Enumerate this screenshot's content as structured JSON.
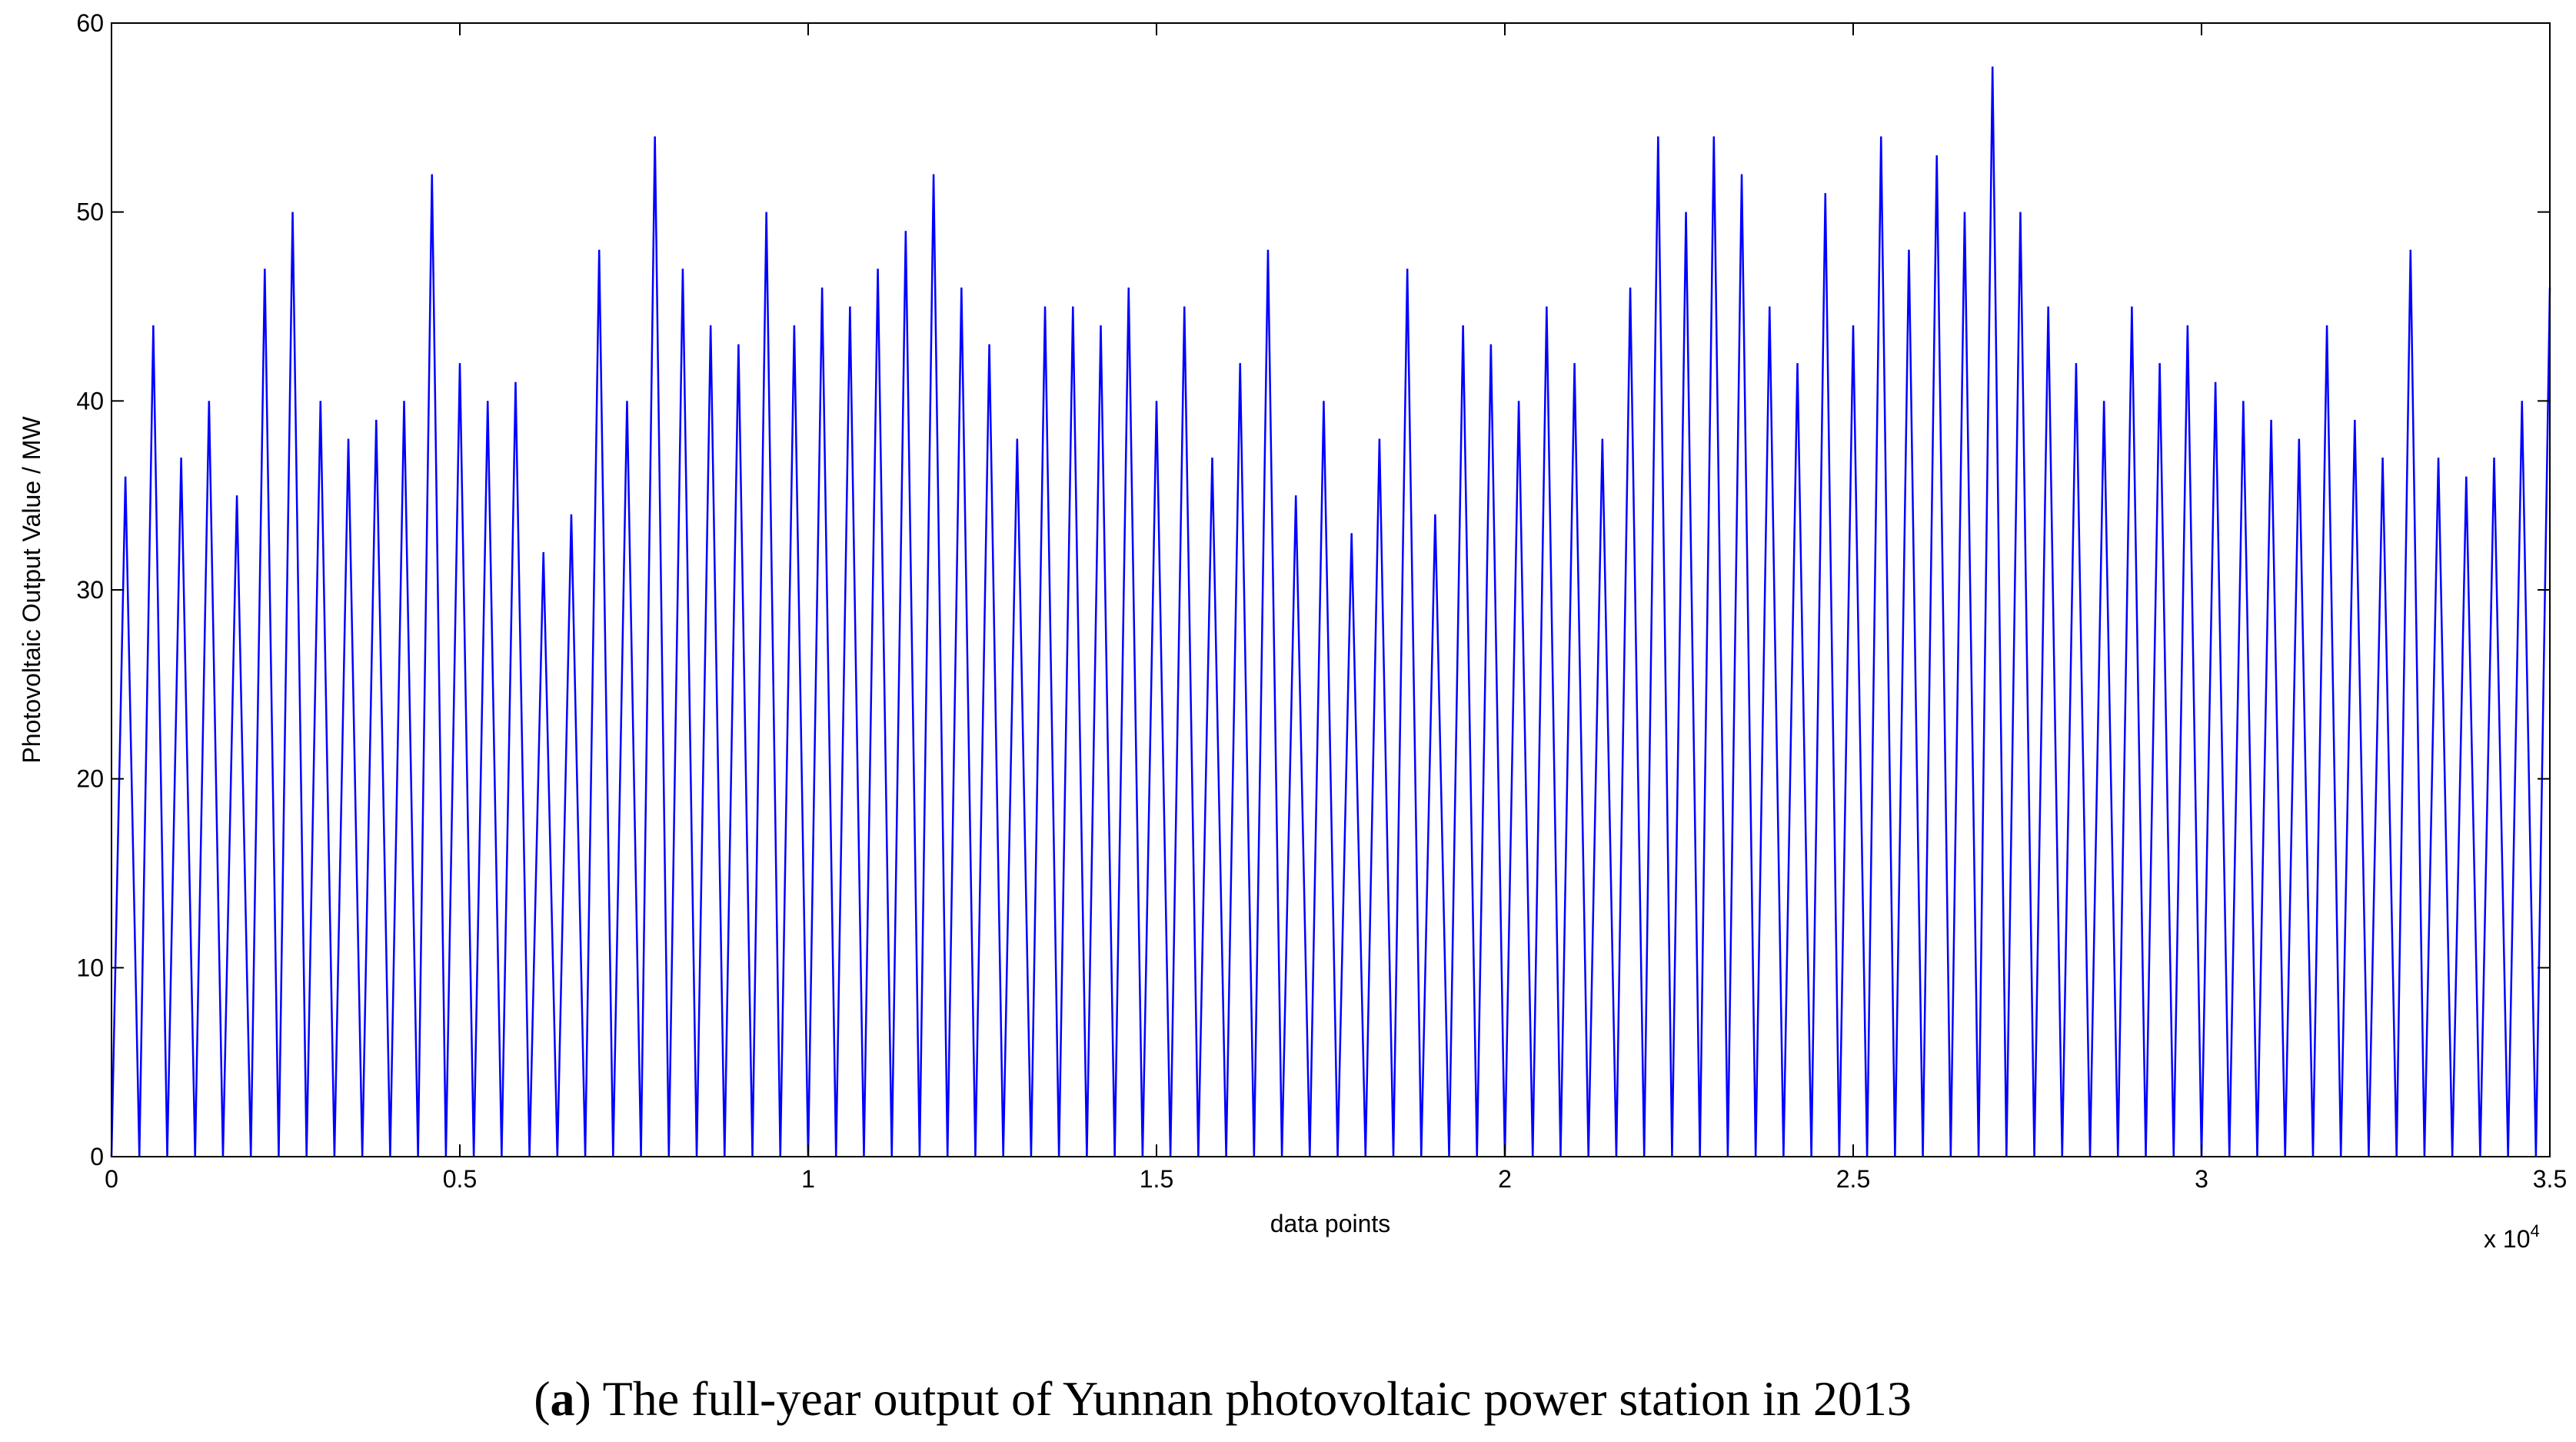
{
  "chart_data": {
    "type": "line",
    "x_label": "data points",
    "y_label": "Photovoltaic Output Value / MW",
    "x_scale_label": {
      "base": "x 10",
      "exponent": "4"
    },
    "caption": {
      "open": "(",
      "label": "a",
      "text": ") The full-year output of Yunnan photovoltaic power station in 2013"
    },
    "color": "#0000ff",
    "xlim": [
      0,
      35000
    ],
    "ylim": [
      0,
      60
    ],
    "xticks": [
      0,
      {
        "value": 5000,
        "label": "0.5"
      },
      {
        "value": 10000,
        "label": "1"
      },
      {
        "value": 15000,
        "label": "1.5"
      },
      {
        "value": 20000,
        "label": "2"
      },
      {
        "value": 25000,
        "label": "2.5"
      },
      {
        "value": 30000,
        "label": "3"
      },
      {
        "value": 35000,
        "label": "3.5"
      }
    ],
    "yticks": [
      0,
      10,
      20,
      30,
      40,
      50,
      60
    ],
    "x": [
      0,
      200,
      400,
      600,
      800,
      1000,
      1200,
      1400,
      1600,
      1800,
      2000,
      2200,
      2400,
      2600,
      2800,
      3000,
      3200,
      3400,
      3600,
      3800,
      4000,
      4200,
      4400,
      4600,
      4800,
      5000,
      5200,
      5400,
      5600,
      5800,
      6000,
      6200,
      6400,
      6600,
      6800,
      7000,
      7200,
      7400,
      7600,
      7800,
      8000,
      8200,
      8400,
      8600,
      8800,
      9000,
      9200,
      9400,
      9600,
      9800,
      10000,
      10200,
      10400,
      10600,
      10800,
      11000,
      11200,
      11400,
      11600,
      11800,
      12000,
      12200,
      12400,
      12600,
      12800,
      13000,
      13200,
      13400,
      13600,
      13800,
      14000,
      14200,
      14400,
      14600,
      14800,
      15000,
      15200,
      15400,
      15600,
      15800,
      16000,
      16200,
      16400,
      16600,
      16800,
      17000,
      17200,
      17400,
      17600,
      17800,
      18000,
      18200,
      18400,
      18600,
      18800,
      19000,
      19200,
      19400,
      19600,
      19800,
      20000,
      20200,
      20400,
      20600,
      20800,
      21000,
      21200,
      21400,
      21600,
      21800,
      22000,
      22200,
      22400,
      22600,
      22800,
      23000,
      23200,
      23400,
      23600,
      23800,
      24000,
      24200,
      24400,
      24600,
      24800,
      25000,
      25200,
      25400,
      25600,
      25800,
      26000,
      26200,
      26400,
      26600,
      26800,
      27000,
      27200,
      27400,
      27600,
      27800,
      28000,
      28200,
      28400,
      28600,
      28800,
      29000,
      29200,
      29400,
      29600,
      29800,
      30000,
      30200,
      30400,
      30600,
      30800,
      31000,
      31200,
      31400,
      31600,
      31800,
      32000,
      32200,
      32400,
      32600,
      32800,
      33000,
      33200,
      33400,
      33600,
      33800,
      34000,
      34200,
      34400,
      34600,
      34800,
      35000
    ],
    "values": [
      0,
      36,
      0,
      44,
      0,
      37,
      0,
      40,
      0,
      35,
      0,
      47,
      0,
      50,
      0,
      40,
      0,
      38,
      0,
      39,
      0,
      40,
      0,
      52,
      0,
      42,
      0,
      40,
      0,
      41,
      0,
      32,
      0,
      34,
      0,
      48,
      0,
      40,
      0,
      54,
      0,
      47,
      0,
      44,
      0,
      43,
      0,
      50,
      0,
      44,
      0,
      46,
      0,
      45,
      0,
      47,
      0,
      49,
      0,
      52,
      0,
      46,
      0,
      43,
      0,
      38,
      0,
      45,
      0,
      45,
      0,
      44,
      0,
      46,
      0,
      40,
      0,
      45,
      0,
      37,
      0,
      42,
      0,
      48,
      0,
      35,
      0,
      40,
      0,
      33,
      0,
      38,
      0,
      47,
      0,
      34,
      0,
      44,
      0,
      43,
      0,
      40,
      0,
      45,
      0,
      42,
      0,
      38,
      0,
      46,
      0,
      54,
      0,
      50,
      0,
      54,
      0,
      52,
      0,
      45,
      0,
      42,
      0,
      51,
      0,
      44,
      0,
      54,
      0,
      48,
      0,
      53,
      0,
      50,
      0,
      57.7,
      0,
      50,
      0,
      45,
      0,
      42,
      0,
      40,
      0,
      45,
      0,
      42,
      0,
      44,
      0,
      41,
      0,
      40,
      0,
      39,
      0,
      38,
      0,
      44,
      0,
      39,
      0,
      37,
      0,
      48,
      0,
      37,
      0,
      36,
      0,
      37,
      0,
      40,
      0,
      46
    ]
  }
}
